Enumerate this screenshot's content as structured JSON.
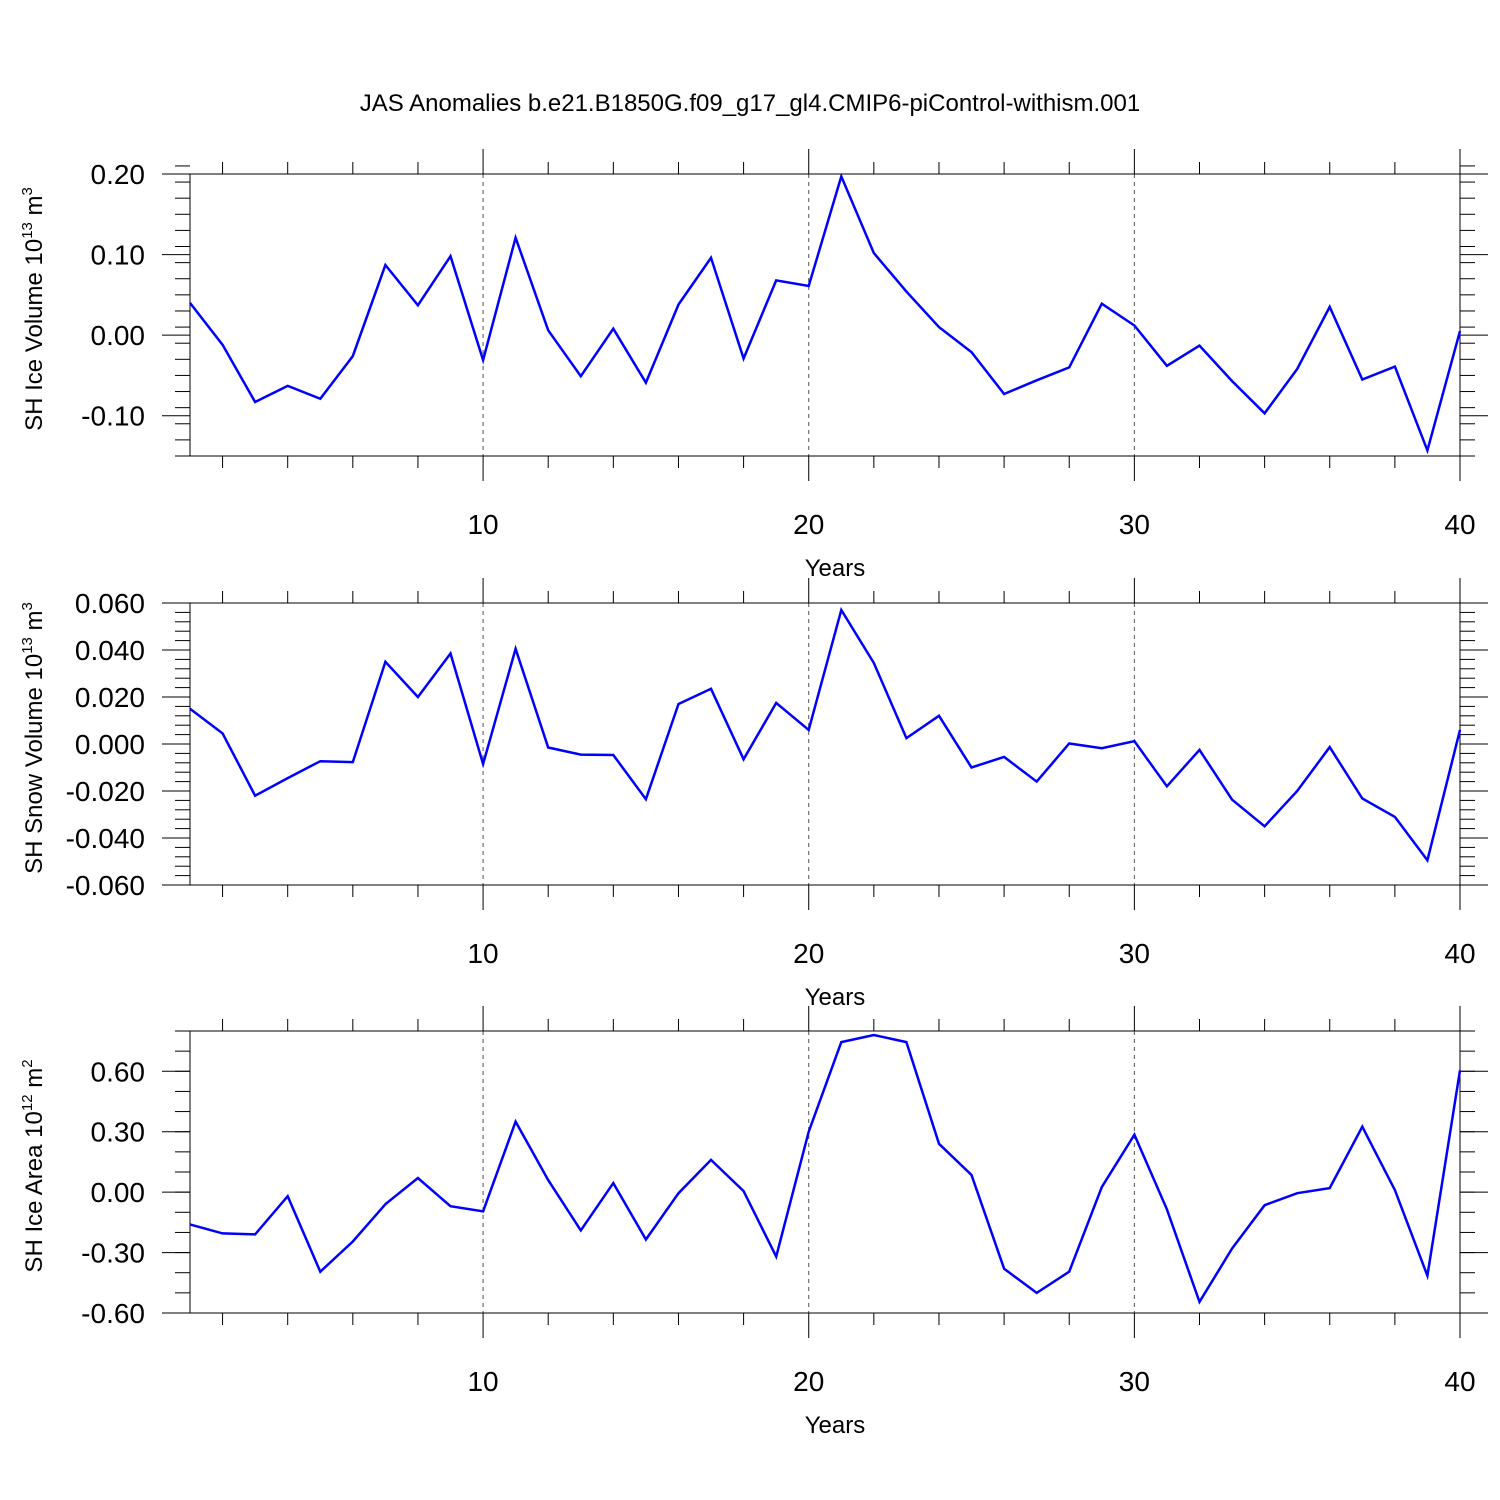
{
  "figure": {
    "title": "JAS Anomalies b.e21.B1850G.f09_g17_gl4.CMIP6-piControl-withism.001",
    "series_color": "#0000ff"
  },
  "chart_data": [
    {
      "type": "line",
      "ylabel_main": "SH Ice Volume 10",
      "ylabel_sup1": "13",
      "ylabel_mid": " m",
      "ylabel_sup2": "3",
      "xlabel": "Years",
      "xlim": [
        1,
        40
      ],
      "ylim": [
        -0.15,
        0.2
      ],
      "grid_x": [
        10,
        20,
        30
      ],
      "xticks": [
        10,
        20,
        30,
        40
      ],
      "xtick_labels": [
        "10",
        "20",
        "30",
        "40"
      ],
      "yticks": [
        -0.1,
        0.0,
        0.1,
        0.2
      ],
      "ytick_labels": [
        "-0.10",
        "0.00",
        "0.10",
        "0.20"
      ],
      "y_minor_step": 0.02,
      "x": [
        1,
        2,
        3,
        4,
        5,
        6,
        7,
        8,
        9,
        10,
        11,
        12,
        13,
        14,
        15,
        16,
        17,
        18,
        19,
        20,
        21,
        22,
        23,
        24,
        25,
        26,
        27,
        28,
        29,
        30,
        31,
        32,
        33,
        34,
        35,
        36,
        37,
        38,
        39,
        40
      ],
      "values": [
        0.04,
        -0.012,
        -0.083,
        -0.063,
        -0.079,
        -0.026,
        0.087,
        0.037,
        0.098,
        -0.031,
        0.121,
        0.006,
        -0.051,
        0.008,
        -0.059,
        0.038,
        0.096,
        -0.029,
        0.068,
        0.061,
        0.197,
        0.102,
        0.054,
        0.01,
        -0.021,
        -0.073,
        -0.056,
        -0.04,
        0.039,
        0.012,
        -0.038,
        -0.013,
        -0.057,
        -0.097,
        -0.042,
        0.035,
        -0.055,
        -0.039,
        -0.143,
        0.005
      ]
    },
    {
      "type": "line",
      "ylabel_main": "SH Snow Volume 10",
      "ylabel_sup1": "13",
      "ylabel_mid": " m",
      "ylabel_sup2": "3",
      "xlabel": "Years",
      "xlim": [
        1,
        40
      ],
      "ylim": [
        -0.06,
        0.06
      ],
      "grid_x": [
        10,
        20,
        30
      ],
      "xticks": [
        10,
        20,
        30,
        40
      ],
      "xtick_labels": [
        "10",
        "20",
        "30",
        "40"
      ],
      "yticks": [
        -0.06,
        -0.04,
        -0.02,
        0.0,
        0.02,
        0.04,
        0.06
      ],
      "ytick_labels": [
        "-0.060",
        "-0.040",
        "-0.020",
        "0.000",
        "0.020",
        "0.040",
        "0.060"
      ],
      "y_minor_step": 0.004,
      "x": [
        1,
        2,
        3,
        4,
        5,
        6,
        7,
        8,
        9,
        10,
        11,
        12,
        13,
        14,
        15,
        16,
        17,
        18,
        19,
        20,
        21,
        22,
        23,
        24,
        25,
        26,
        27,
        28,
        29,
        30,
        31,
        32,
        33,
        34,
        35,
        36,
        37,
        38,
        39,
        40
      ],
      "values": [
        0.015,
        0.0045,
        -0.022,
        -0.0145,
        -0.0073,
        -0.0077,
        0.035,
        0.02,
        0.0385,
        -0.0085,
        0.0405,
        -0.0015,
        -0.0045,
        -0.0047,
        -0.0235,
        0.017,
        0.0235,
        -0.0065,
        0.0175,
        0.006,
        0.057,
        0.0345,
        0.0025,
        0.012,
        -0.01,
        -0.0055,
        -0.016,
        0.0002,
        -0.0018,
        0.0012,
        -0.018,
        -0.0025,
        -0.0237,
        -0.035,
        -0.02,
        -0.0013,
        -0.0232,
        -0.031,
        -0.0495,
        0.006
      ]
    },
    {
      "type": "line",
      "ylabel_main": "SH Ice Area 10",
      "ylabel_sup1": "12",
      "ylabel_mid": " m",
      "ylabel_sup2": "2",
      "xlabel": "Years",
      "xlim": [
        1,
        40
      ],
      "ylim": [
        -0.6,
        0.8
      ],
      "grid_x": [
        10,
        20,
        30
      ],
      "xticks": [
        10,
        20,
        30,
        40
      ],
      "xtick_labels": [
        "10",
        "20",
        "30",
        "40"
      ],
      "yticks": [
        -0.6,
        -0.3,
        0.0,
        0.3,
        0.6
      ],
      "ytick_labels": [
        "-0.60",
        "-0.30",
        "0.00",
        "0.30",
        "0.60"
      ],
      "y_minor_step": 0.1,
      "x": [
        1,
        2,
        3,
        4,
        5,
        6,
        7,
        8,
        9,
        10,
        11,
        12,
        13,
        14,
        15,
        16,
        17,
        18,
        19,
        20,
        21,
        22,
        23,
        24,
        25,
        26,
        27,
        28,
        29,
        30,
        31,
        32,
        33,
        34,
        35,
        36,
        37,
        38,
        39,
        40
      ],
      "values": [
        -0.16,
        -0.205,
        -0.21,
        -0.02,
        -0.395,
        -0.245,
        -0.06,
        0.07,
        -0.07,
        -0.095,
        0.35,
        0.06,
        -0.19,
        0.045,
        -0.235,
        -0.005,
        0.16,
        0.005,
        -0.32,
        0.3,
        0.745,
        0.78,
        0.745,
        0.24,
        0.085,
        -0.38,
        -0.5,
        -0.395,
        0.025,
        0.285,
        -0.085,
        -0.545,
        -0.28,
        -0.065,
        -0.005,
        0.02,
        0.325,
        0.01,
        -0.415,
        0.605
      ]
    }
  ]
}
